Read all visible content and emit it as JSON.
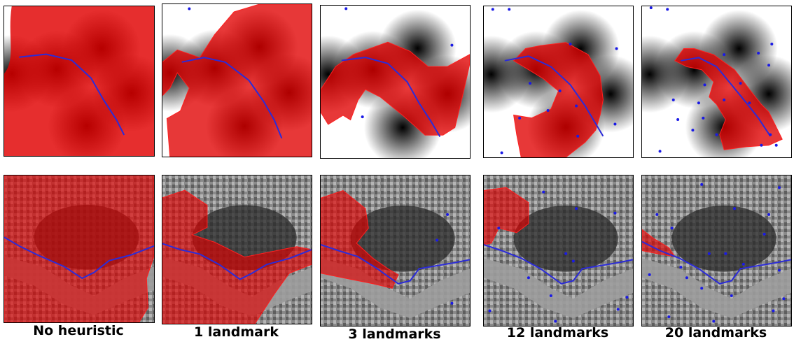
{
  "columns": [
    {
      "label": "No heuristic",
      "landmarks": 0
    },
    {
      "label": "1 landmark",
      "landmarks": 1
    },
    {
      "label": "3 landmarks",
      "landmarks": 3
    },
    {
      "label": "12 landmarks",
      "landmarks": 12
    },
    {
      "label": "20 landmarks",
      "landmarks": 20
    }
  ],
  "colors": {
    "explored_region": "#e00000",
    "path": "#2b2bd9",
    "landmark": "#1a1ae6",
    "boundary": "#ff2020"
  }
}
